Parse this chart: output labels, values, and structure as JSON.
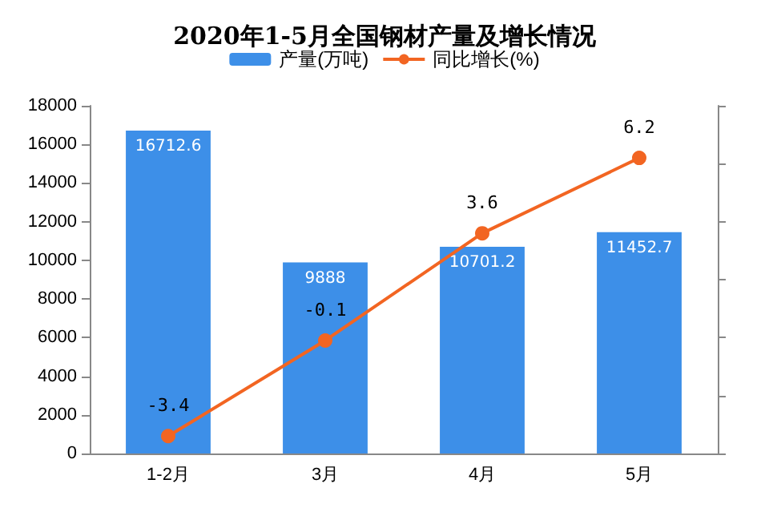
{
  "chart_data": {
    "type": "bar",
    "title": "2020年1-5月全国钢材产量及增长情况",
    "categories": [
      "1-2月",
      "3月",
      "4月",
      "5月"
    ],
    "series": [
      {
        "name": "产量(万吨)",
        "color": "#3d8fe8",
        "values": [
          16712.6,
          9888,
          10701.2,
          11452.7
        ]
      },
      {
        "name": "同比增长(%)",
        "type": "line",
        "axis": "y2",
        "color": "#f26522",
        "values": [
          -3.4,
          -0.1,
          3.6,
          6.2
        ]
      }
    ],
    "ylim": [
      0,
      18000
    ],
    "yticks": [
      0,
      2000,
      4000,
      6000,
      8000,
      10000,
      12000,
      14000,
      16000,
      18000
    ],
    "y2lim": [
      -4,
      8
    ],
    "y2ticks": [
      {
        "value": -4,
        "label": null
      },
      {
        "value": -2,
        "label": null
      },
      {
        "value": 0,
        "label": null
      },
      {
        "value": 2,
        "label": null
      },
      {
        "value": 4,
        "label": null
      },
      {
        "value": 6,
        "label": null
      },
      {
        "value": 8,
        "label": null
      }
    ],
    "data_labels": true,
    "legend": "top",
    "grid": false,
    "marker": "circle"
  }
}
